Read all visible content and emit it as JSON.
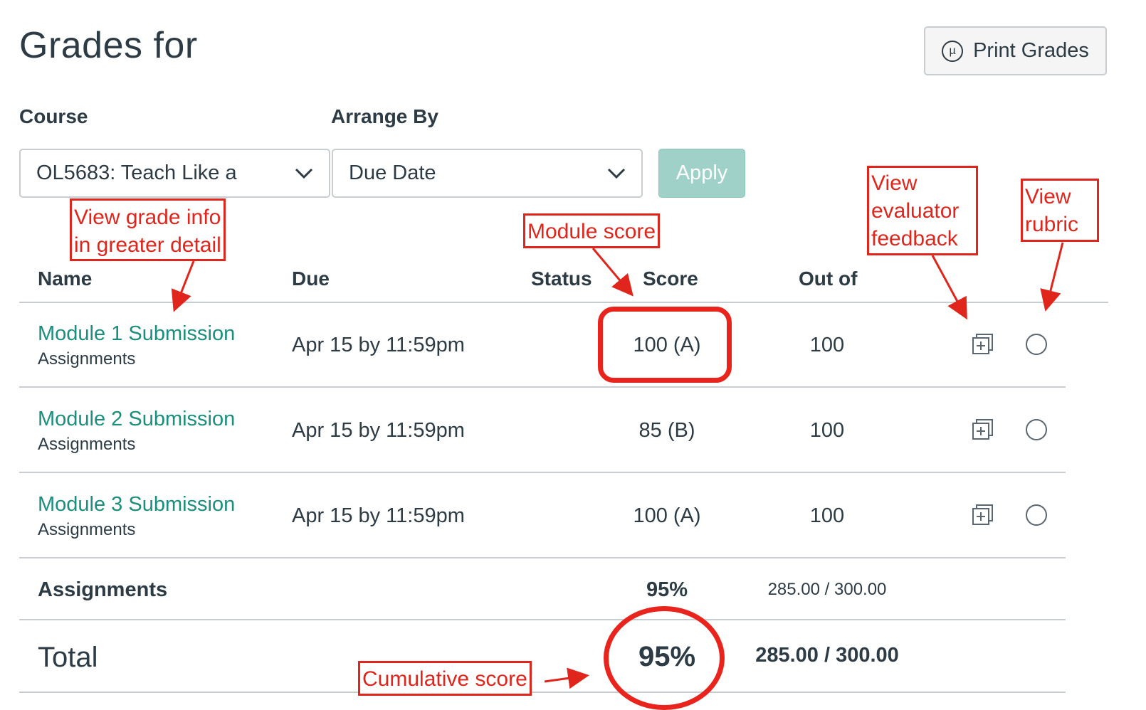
{
  "header": {
    "title": "Grades for",
    "print_label": "Print Grades",
    "print_icon_glyph": "µ"
  },
  "filters": {
    "course_label": "Course",
    "course_value": "OL5683: Teach Like a",
    "arrange_label": "Arrange By",
    "arrange_value": "Due Date",
    "apply_label": "Apply"
  },
  "table": {
    "columns": [
      "Name",
      "Due",
      "Status",
      "Score",
      "Out of"
    ],
    "rows": [
      {
        "name": "Module 1 Submission",
        "group": "Assignments",
        "due": "Apr 15 by 11:59pm",
        "status": "",
        "score": "100 (A)",
        "out_of": "100"
      },
      {
        "name": "Module 2 Submission",
        "group": "Assignments",
        "due": "Apr 15 by 11:59pm",
        "status": "",
        "score": "85 (B)",
        "out_of": "100"
      },
      {
        "name": "Module 3 Submission",
        "group": "Assignments",
        "due": "Apr 15 by 11:59pm",
        "status": "",
        "score": "100 (A)",
        "out_of": "100"
      }
    ],
    "group_total": {
      "label": "Assignments",
      "score": "95%",
      "points": "285.00 / 300.00"
    },
    "total": {
      "label": "Total",
      "score": "95%",
      "points": "285.00 / 300.00"
    }
  },
  "annotations": {
    "grade_info_line1": "View grade info",
    "grade_info_line2": "in greater detail",
    "module_score": "Module score",
    "feedback_line1": "View",
    "feedback_line2": "evaluator",
    "feedback_line3": "feedback",
    "rubric_line1": "View",
    "rubric_line2": "rubric",
    "cumulative": "Cumulative score"
  },
  "colors": {
    "link": "#1a8f7d",
    "apply_bg": "#9fd1c9",
    "annotation": "#e0261c",
    "text": "#2d3b45"
  },
  "icons": {
    "print": "print-icon",
    "dropdown": "chevron-down-icon",
    "feedback": "feedback-plus-icon",
    "rubric": "rubric-circle-icon"
  }
}
